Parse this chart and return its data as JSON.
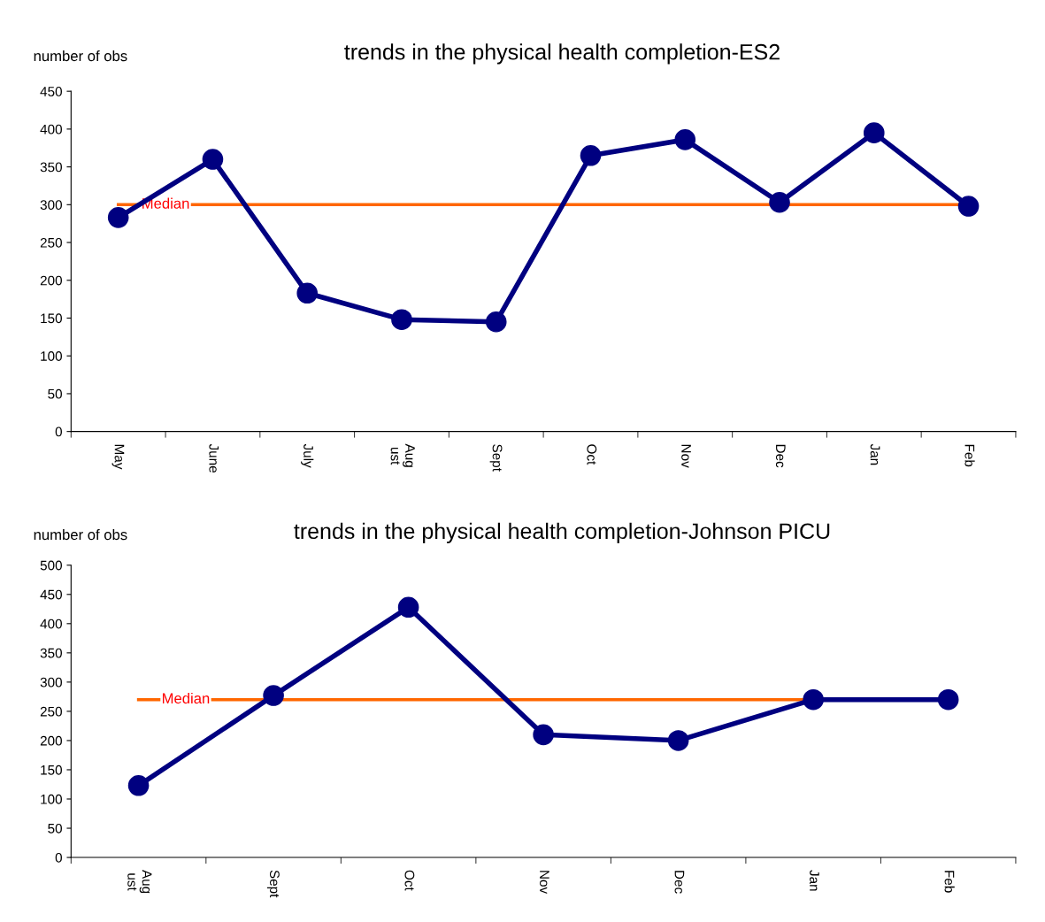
{
  "chart_data": [
    {
      "type": "line",
      "title": "trends in the physical health completion-ES2",
      "ylabel": "number of obs",
      "categories": [
        "May",
        "June",
        "July",
        "Aug\nust",
        "Sept",
        "Oct",
        "Nov",
        "Dec",
        "Jan",
        "Feb"
      ],
      "series": [
        {
          "color": "#000080",
          "values": [
            283,
            360,
            183,
            148,
            145,
            365,
            386,
            303,
            395,
            298
          ]
        }
      ],
      "ylim": [
        0,
        450
      ],
      "yticks": [
        0,
        50,
        100,
        150,
        200,
        250,
        300,
        350,
        400,
        450
      ],
      "grid": false,
      "legend": false,
      "marker": "circle",
      "line_style": "solid",
      "ref_lines": [
        {
          "axis": "y",
          "value": 300,
          "label": "Median",
          "color": "#ff6600"
        }
      ]
    },
    {
      "type": "line",
      "title": "trends in the physical health completion-Johnson PICU",
      "ylabel": "number of obs",
      "categories": [
        "Aug\nust",
        "Sept",
        "Oct",
        "Nov",
        "Dec",
        "Jan",
        "Feb"
      ],
      "series": [
        {
          "color": "#000080",
          "values": [
            123,
            277,
            428,
            210,
            200,
            270,
            270
          ]
        }
      ],
      "ylim": [
        0,
        500
      ],
      "yticks": [
        0,
        50,
        100,
        150,
        200,
        250,
        300,
        350,
        400,
        450,
        500
      ],
      "grid": false,
      "legend": false,
      "marker": "circle",
      "line_style": "solid",
      "ref_lines": [
        {
          "axis": "y",
          "value": 270,
          "label": "Median",
          "color": "#ff6600"
        }
      ]
    }
  ]
}
